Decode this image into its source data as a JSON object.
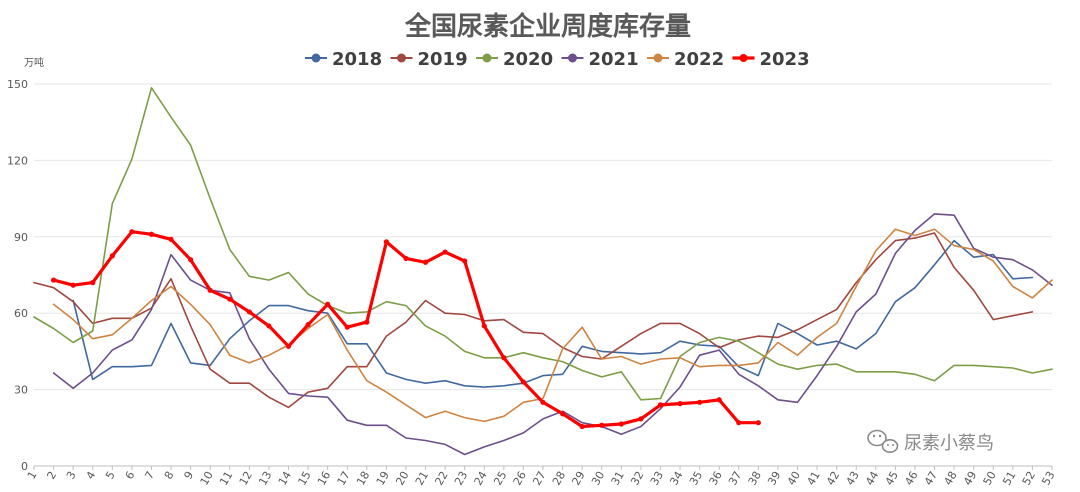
{
  "chart_data": {
    "type": "line",
    "title": "全国尿素企业周度库存量",
    "ylabel": "万吨",
    "ylim": [
      0,
      150
    ],
    "yticks": [
      0,
      30,
      60,
      90,
      120,
      150
    ],
    "x": [
      1,
      2,
      3,
      4,
      5,
      6,
      7,
      8,
      9,
      10,
      11,
      12,
      13,
      14,
      15,
      16,
      17,
      18,
      19,
      20,
      21,
      22,
      23,
      24,
      25,
      26,
      27,
      28,
      29,
      30,
      31,
      32,
      33,
      34,
      35,
      36,
      37,
      38,
      39,
      40,
      41,
      42,
      43,
      44,
      45,
      46,
      47,
      48,
      49,
      50,
      51,
      52,
      53
    ],
    "legend_position": "top",
    "grid": true,
    "series": [
      {
        "name": "2018",
        "color": "#41699f",
        "width": 1.6,
        "markers": false,
        "values": [
          null,
          null,
          65,
          34,
          39,
          39,
          39.5,
          56,
          40.5,
          39.5,
          50,
          57,
          63,
          63,
          61,
          60,
          48,
          48,
          36.5,
          34,
          32.5,
          33.5,
          31.5,
          31,
          31.5,
          32.5,
          35.5,
          36,
          47,
          45,
          44.5,
          44,
          44.5,
          49,
          47.5,
          47,
          39,
          35.5,
          56,
          52,
          47.5,
          49,
          46,
          52,
          64.5,
          70,
          79,
          88.5,
          82,
          83,
          73.5,
          74,
          null
        ]
      },
      {
        "name": "2019",
        "color": "#a0473f",
        "width": 1.6,
        "markers": false,
        "values": [
          72,
          70,
          64.5,
          56,
          58,
          58,
          62,
          73.5,
          55,
          38,
          32.5,
          32.5,
          27,
          23,
          29,
          30.5,
          39,
          39,
          51,
          56.5,
          65,
          60,
          59.5,
          57,
          57.5,
          52.5,
          52,
          46.5,
          43,
          42,
          47,
          52,
          56,
          56,
          52,
          46.5,
          49.5,
          51,
          50.5,
          53.5,
          57.5,
          61.5,
          72,
          81,
          88.5,
          89.5,
          91.5,
          78,
          69,
          57.5,
          59,
          60.5,
          null
        ]
      },
      {
        "name": "2020",
        "color": "#7d9e47",
        "width": 1.6,
        "markers": false,
        "values": [
          58.5,
          54,
          48.5,
          53,
          103,
          120.5,
          148.5,
          137,
          126,
          105,
          85,
          74.5,
          73,
          76,
          67.5,
          63,
          60,
          60.5,
          64.5,
          63,
          55,
          51,
          45,
          42.5,
          42.5,
          44.5,
          42.5,
          41,
          37.5,
          35,
          37,
          26,
          26.5,
          43,
          48.5,
          50.5,
          49,
          44.5,
          40,
          38,
          39.5,
          40,
          37,
          37,
          37,
          36,
          33.5,
          39.5,
          39.5,
          39,
          38.5,
          36.5,
          38
        ]
      },
      {
        "name": "2021",
        "color": "#6c4f8c",
        "width": 1.6,
        "markers": false,
        "values": [
          null,
          36.5,
          30.5,
          36.5,
          45.5,
          49.5,
          61.5,
          83,
          73,
          69,
          68,
          50,
          38,
          28.5,
          27.5,
          27,
          18,
          16,
          16,
          11,
          10,
          8.5,
          4.5,
          7.5,
          10,
          13,
          18.5,
          21.5,
          17,
          15.5,
          12.5,
          15.5,
          22.5,
          31,
          43.5,
          45.5,
          36,
          31.5,
          26,
          25,
          35.5,
          47,
          60.5,
          67.5,
          83.5,
          92.5,
          99,
          98.5,
          85.5,
          82,
          81,
          77,
          71
        ]
      },
      {
        "name": "2022",
        "color": "#cf8441",
        "width": 1.6,
        "markers": false,
        "values": [
          null,
          63.5,
          57.5,
          50,
          51.5,
          58,
          65,
          70.5,
          63.5,
          55.5,
          43.5,
          40.5,
          43.5,
          47.5,
          54,
          59.5,
          45.5,
          33.5,
          29,
          24,
          19,
          21.5,
          19,
          17.5,
          19.5,
          25,
          26.5,
          46,
          54.5,
          42,
          43,
          40,
          42,
          42.5,
          39,
          39.5,
          39.5,
          40.5,
          48.5,
          43.5,
          50.5,
          56,
          70.5,
          84.5,
          93,
          90.5,
          93,
          86.5,
          85,
          80.5,
          70.5,
          66,
          73
        ]
      },
      {
        "name": "2023",
        "color": "#ff0000",
        "width": 3.2,
        "markers": true,
        "values": [
          null,
          73,
          71,
          72,
          82.5,
          92,
          91,
          89,
          81,
          69,
          65.5,
          60.5,
          55,
          47,
          55.5,
          63.5,
          54.5,
          56.5,
          88,
          81.5,
          80,
          84,
          80.5,
          55,
          42.5,
          33,
          25,
          20.5,
          15.5,
          16,
          16.5,
          18.5,
          24,
          24.5,
          25,
          26,
          17,
          17,
          null,
          null,
          null,
          null,
          null,
          null,
          null,
          null,
          null,
          null,
          null,
          null,
          null,
          null,
          null
        ]
      }
    ]
  },
  "watermark": {
    "text": "尿素小蔡鸟",
    "icon": "wechat-icon"
  }
}
